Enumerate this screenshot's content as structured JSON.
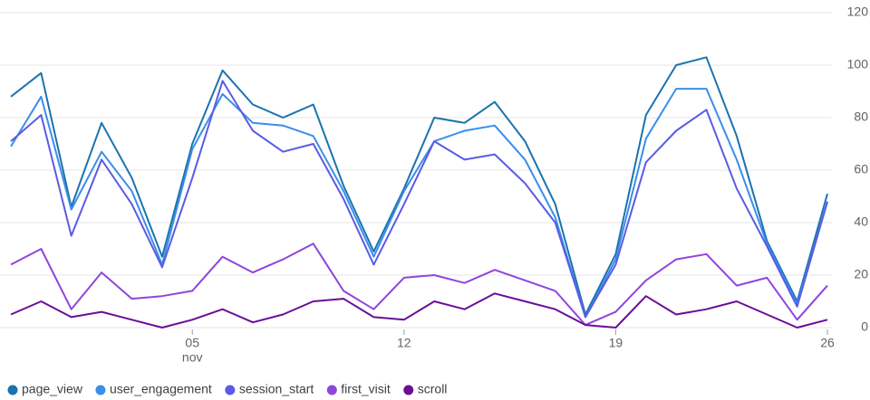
{
  "chart_data": {
    "type": "line",
    "categories": [
      null,
      null,
      null,
      null,
      null,
      null,
      "05",
      null,
      null,
      null,
      null,
      null,
      null,
      "12",
      null,
      null,
      null,
      null,
      null,
      null,
      "19",
      null,
      null,
      null,
      null,
      null,
      null,
      "26"
    ],
    "x_month_label": "nov",
    "series": [
      {
        "name": "page_view",
        "color": "#1a73b0",
        "values": [
          88,
          97,
          46,
          78,
          57,
          27,
          70,
          98,
          85,
          80,
          85,
          54,
          29,
          53,
          80,
          78,
          86,
          71,
          47,
          5,
          28,
          81,
          100,
          103,
          73,
          33,
          10,
          51
        ]
      },
      {
        "name": "user_engagement",
        "color": "#3a8ee8",
        "values": [
          69,
          88,
          45,
          67,
          52,
          24,
          68,
          89,
          78,
          77,
          73,
          52,
          27,
          52,
          71,
          75,
          77,
          64,
          42,
          4,
          26,
          72,
          91,
          91,
          64,
          32,
          9,
          48
        ]
      },
      {
        "name": "session_start",
        "color": "#5a5be6",
        "values": [
          71,
          81,
          35,
          64,
          47,
          23,
          57,
          94,
          75,
          67,
          70,
          49,
          24,
          47,
          71,
          64,
          66,
          55,
          40,
          4,
          24,
          63,
          75,
          83,
          53,
          31,
          8,
          48
        ]
      },
      {
        "name": "first_visit",
        "color": "#8f45dd",
        "values": [
          24,
          30,
          7,
          21,
          11,
          12,
          14,
          27,
          21,
          26,
          32,
          14,
          7,
          19,
          20,
          17,
          22,
          18,
          14,
          1,
          6,
          18,
          26,
          28,
          16,
          19,
          3,
          16
        ]
      },
      {
        "name": "scroll",
        "color": "#6a0e96",
        "values": [
          5,
          10,
          4,
          6,
          3,
          0,
          3,
          7,
          2,
          5,
          10,
          11,
          4,
          3,
          10,
          7,
          13,
          10,
          7,
          1,
          0,
          12,
          5,
          7,
          10,
          5,
          0,
          3
        ]
      }
    ],
    "ylim": [
      0,
      120
    ],
    "yticks": [
      0,
      20,
      40,
      60,
      80,
      100,
      120
    ],
    "grid": true,
    "legend": "bottom"
  }
}
